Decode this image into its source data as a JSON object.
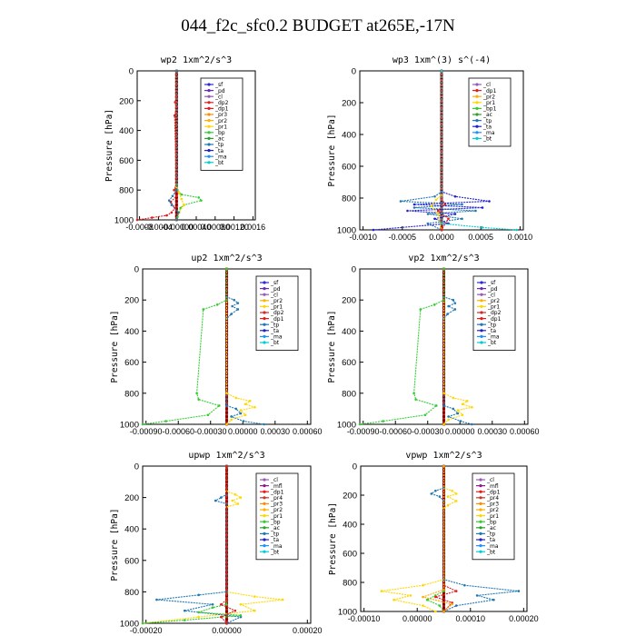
{
  "figure": {
    "title": "044_f2c_sfc0.2  BUDGET at265E,-17N"
  },
  "chart_data": [
    {
      "type": "line",
      "title": "wp2  1xm^2/s^3",
      "ylabel": "Pressure [hPa]",
      "ylim": [
        1000,
        0
      ],
      "xlim": [
        -0.0008,
        0.0016
      ],
      "xticks": [
        "-0.0008",
        "-0.0004",
        "-0.00000",
        "0.00040",
        "0.00080",
        "0.00120",
        "0.0016"
      ],
      "yticks": [
        "0",
        "200",
        "400",
        "600",
        "800",
        "1000"
      ],
      "legend": [
        "_sf",
        "_pd",
        "_cl",
        "_dp2",
        "_dp1",
        "_pr3",
        "_pr2",
        "_pr1",
        "_bp",
        "_ac",
        "_tp",
        "_ta",
        "_ma",
        "_bt"
      ],
      "legend_position": "top-right",
      "series": [
        {
          "name": "_dp1",
          "color": "#e41a1c",
          "x": [
            0,
            0,
            -3e-05,
            0,
            -4e-05,
            0,
            -5e-05,
            0,
            -0.00012,
            -3e-05,
            -0.0001,
            -0.0002,
            -0.0005,
            -0.0008
          ],
          "y": [
            0,
            180,
            210,
            240,
            300,
            760,
            800,
            840,
            880,
            920,
            950,
            970,
            985,
            1000
          ]
        },
        {
          "name": "_bp",
          "color": "#33cc33",
          "x": [
            0,
            0,
            2e-05,
            0.0001,
            0.00045,
            0.0005,
            0.00015,
            8e-05,
            5e-05,
            2e-05,
            0
          ],
          "y": [
            0,
            760,
            800,
            830,
            850,
            870,
            900,
            920,
            950,
            980,
            1000
          ]
        },
        {
          "name": "_pr1",
          "color": "#ffd700",
          "x": [
            0,
            0,
            5e-05,
            0.0001,
            0.00015,
            5e-05,
            0
          ],
          "y": [
            0,
            780,
            820,
            860,
            900,
            950,
            1000
          ]
        },
        {
          "name": "_tp",
          "color": "#1f78b4",
          "x": [
            0,
            0,
            -8e-05,
            -0.00015,
            -0.0001,
            4e-05,
            0
          ],
          "y": [
            0,
            800,
            840,
            870,
            900,
            950,
            1000
          ]
        }
      ]
    },
    {
      "type": "line",
      "title": "wp3  1xm^(3) s^(-4)",
      "ylabel": "Pressure [hPa]",
      "ylim": [
        1000,
        0
      ],
      "xlim": [
        -0.0012,
        0.0012
      ],
      "xticks": [
        "-0.0010",
        "-0.0005",
        "0.0000",
        "0.0005",
        "0.0010"
      ],
      "yticks": [
        "0",
        "200",
        "400",
        "600",
        "800",
        "1000"
      ],
      "legend": [
        "_cl",
        "_dp1",
        "_pr2",
        "_pr1",
        "_bp1",
        "_ac",
        "_tp",
        "_ta",
        "_ma",
        "_bt"
      ],
      "legend_position": "top-right",
      "series": [
        {
          "name": "_tp",
          "color": "#1f78b4",
          "x": [
            0,
            0,
            -0.0001,
            -0.0006,
            0.0003,
            -0.0004,
            0.0005,
            -0.0002,
            0.0003,
            -0.0002,
            0
          ],
          "y": [
            0,
            760,
            790,
            820,
            840,
            860,
            880,
            900,
            930,
            960,
            1000
          ]
        },
        {
          "name": "_ta",
          "color": "#1f1fd0",
          "x": [
            0,
            0,
            0.0002,
            0.0007,
            -0.0004,
            0.0006,
            -0.0005,
            0.0002,
            -0.0001,
            0.0001,
            -0.001
          ],
          "y": [
            0,
            760,
            790,
            820,
            840,
            860,
            880,
            900,
            930,
            960,
            1000
          ]
        },
        {
          "name": "_pr1",
          "color": "#ffd700",
          "x": [
            0,
            0,
            -8e-05,
            -0.00015,
            -5e-05,
            0
          ],
          "y": [
            0,
            780,
            810,
            850,
            900,
            1000
          ]
        },
        {
          "name": "_dp1",
          "color": "#e41a1c",
          "x": [
            0,
            0,
            5e-05,
            -5e-05,
            0.0001,
            0
          ],
          "y": [
            0,
            800,
            840,
            880,
            930,
            1000
          ]
        },
        {
          "name": "_bt",
          "color": "#00ced1",
          "x": [
            0,
            0,
            0.0006,
            0.0011
          ],
          "y": [
            0,
            960,
            985,
            1000
          ]
        }
      ]
    },
    {
      "type": "line",
      "title": "up2  1xm^2/s^3",
      "ylabel": "Pressure [hPa]",
      "ylim": [
        1000,
        0
      ],
      "xlim": [
        -0.0009,
        0.0009
      ],
      "xticks": [
        "-0.00090",
        "-0.00060",
        "-0.00030",
        "0.00000",
        "0.00030",
        "0.00060"
      ],
      "yticks": [
        "0",
        "200",
        "400",
        "600",
        "800",
        "1000"
      ],
      "legend": [
        "_sf",
        "_pd",
        "_cl",
        "_pr2",
        "_pr1",
        "_dp2",
        "_dp1",
        "_tp",
        "_ta",
        "_ma",
        "_bt"
      ],
      "legend_position": "top-right",
      "series": [
        {
          "name": "_ta",
          "color": "#1f78b4",
          "x": [
            0,
            0,
            8e-05,
            0.00012,
            6e-05,
            0.00012,
            5e-05,
            0,
            0,
            0.0001,
            0.00015,
            5e-05,
            0.00018,
            0.0004
          ],
          "y": [
            0,
            180,
            200,
            220,
            240,
            260,
            290,
            320,
            880,
            900,
            930,
            950,
            980,
            1000
          ]
        },
        {
          "name": "_pr1",
          "color": "#ffd700",
          "x": [
            0,
            0,
            0.0001,
            0.00025,
            0.0002,
            0.0003,
            0.00015,
            0.0002,
            5e-05,
            0
          ],
          "y": [
            0,
            800,
            830,
            850,
            870,
            890,
            910,
            940,
            970,
            1000
          ]
        },
        {
          "name": "_dp1",
          "color": "#33cc33",
          "x": [
            0,
            0,
            -0.0001,
            -0.00025,
            -0.00032,
            -0.0003,
            -8e-05,
            -0.0002,
            -0.00065,
            -0.0009
          ],
          "y": [
            0,
            200,
            230,
            260,
            800,
            840,
            880,
            940,
            980,
            1000
          ]
        }
      ]
    },
    {
      "type": "line",
      "title": "vp2  1xm^2/s^3",
      "ylabel": "Pressure [hPa]",
      "ylim": [
        1000,
        0
      ],
      "xlim": [
        -0.0009,
        0.0009
      ],
      "xticks": [
        "-0.00090",
        "-0.00060",
        "-0.00030",
        "0.00000",
        "0.00030",
        "0.00060"
      ],
      "yticks": [
        "0",
        "200",
        "400",
        "600",
        "800",
        "1000"
      ],
      "legend": [
        "_sf",
        "_pd",
        "_cl",
        "_pr2",
        "_pr1",
        "_dp2",
        "_dp1",
        "_tp",
        "_ta",
        "_ma",
        "_bt"
      ],
      "legend_position": "top-right",
      "series": [
        {
          "name": "_ta",
          "color": "#1f78b4",
          "x": [
            0,
            0,
            0.0001,
            0.00012,
            5e-05,
            0.00012,
            4e-05,
            0,
            0,
            0.0001,
            0.00015,
            5e-05,
            0.00018,
            0.0003
          ],
          "y": [
            0,
            180,
            200,
            220,
            240,
            260,
            290,
            320,
            880,
            900,
            930,
            950,
            980,
            1000
          ]
        },
        {
          "name": "_pr1",
          "color": "#ffd700",
          "x": [
            0,
            0,
            0.0001,
            0.00025,
            0.0002,
            0.0003,
            0.00015,
            0.0002,
            5e-05,
            0
          ],
          "y": [
            0,
            800,
            830,
            850,
            870,
            890,
            910,
            940,
            970,
            1000
          ]
        },
        {
          "name": "_dp1",
          "color": "#33cc33",
          "x": [
            0,
            0,
            -0.0001,
            -0.00025,
            -0.00032,
            -0.0003,
            -8e-05,
            -0.0002,
            -0.00065,
            -0.0009
          ],
          "y": [
            0,
            200,
            230,
            260,
            800,
            840,
            880,
            940,
            980,
            1000
          ]
        }
      ]
    },
    {
      "type": "line",
      "title": "upwp  1xm^2/s^3",
      "ylabel": "Pressure [hPa]",
      "ylim": [
        1000,
        0
      ],
      "xlim": [
        -0.0003,
        0.0003
      ],
      "xticks": [
        "-0.00020",
        "0.00000",
        "0.00020"
      ],
      "yticks": [
        "0",
        "200",
        "400",
        "600",
        "800",
        "1000"
      ],
      "legend": [
        "_cl",
        "_mfl",
        "_dp1",
        "_pr4",
        "_pr3",
        "_pr2",
        "_pr1",
        "_bp",
        "_ac",
        "_tp",
        "_ta",
        "_ma",
        "_bt"
      ],
      "legend_position": "top-right",
      "series": [
        {
          "name": "_pr2",
          "color": "#ffd700",
          "x": [
            0,
            0,
            3e-05,
            5e-05,
            2e-05,
            4e-05,
            0,
            0,
            0.0001,
            0.0002,
            5e-05,
            0.0001,
            -0.0001,
            -0.0003
          ],
          "y": [
            0,
            160,
            180,
            200,
            220,
            240,
            260,
            800,
            830,
            850,
            880,
            920,
            960,
            1000
          ]
        },
        {
          "name": "_tp",
          "color": "#1f78b4",
          "x": [
            0,
            0,
            -2e-05,
            -4e-05,
            0,
            0,
            -0.0001,
            -0.00025,
            -5e-05,
            -0.00015,
            5e-05,
            0
          ],
          "y": [
            0,
            180,
            200,
            220,
            240,
            800,
            820,
            850,
            880,
            920,
            960,
            1000
          ]
        },
        {
          "name": "_ac",
          "color": "#33cc33",
          "x": [
            0,
            0,
            -5e-05,
            -0.0001,
            5e-05,
            -0.00015,
            -0.0003
          ],
          "y": [
            0,
            880,
            900,
            930,
            950,
            980,
            1000
          ]
        },
        {
          "name": "_dp1",
          "color": "#e41a1c",
          "x": [
            0,
            0,
            -2e-05,
            3e-05,
            -2e-05,
            0
          ],
          "y": [
            0,
            850,
            880,
            920,
            960,
            1000
          ]
        }
      ]
    },
    {
      "type": "line",
      "title": "vpwp  1xm^2/s^3",
      "ylabel": "Pressure [hPa]",
      "ylim": [
        1000,
        0
      ],
      "xlim": [
        -0.0002,
        0.0002
      ],
      "xticks": [
        "-0.00010",
        "0.00000",
        "0.00010",
        "0.00020"
      ],
      "yticks": [
        "0",
        "200",
        "400",
        "600",
        "800",
        "1000"
      ],
      "legend": [
        "_cl",
        "_mfl",
        "_dp1",
        "_pr4",
        "_pr3",
        "_pr2",
        "_pr1",
        "_bp",
        "_ac",
        "_tp",
        "_ta",
        "_ma",
        "_bt"
      ],
      "legend_position": "top-right",
      "series": [
        {
          "name": "_pr2",
          "color": "#ffd700",
          "x": [
            0,
            0,
            2e-05,
            3e-05,
            1e-05,
            3e-05,
            1e-05,
            0,
            0,
            -5e-05,
            -0.00015,
            -8e-05,
            -0.00012,
            -5e-05,
            -2e-05
          ],
          "y": [
            0,
            150,
            170,
            190,
            210,
            240,
            270,
            290,
            780,
            820,
            860,
            890,
            920,
            960,
            1000
          ]
        },
        {
          "name": "_tp",
          "color": "#1f78b4",
          "x": [
            0,
            0,
            -2e-05,
            -3e-05,
            -1e-05,
            0,
            0,
            5e-05,
            0.00018,
            8e-05,
            0.00012,
            3e-05,
            0
          ],
          "y": [
            0,
            150,
            170,
            190,
            210,
            240,
            780,
            820,
            860,
            890,
            920,
            960,
            1000
          ]
        },
        {
          "name": "_ac",
          "color": "#33cc33",
          "x": [
            0,
            0,
            -2e-05,
            -4e-05,
            -1e-05,
            0
          ],
          "y": [
            0,
            860,
            890,
            920,
            960,
            1000
          ]
        },
        {
          "name": "_dp1",
          "color": "#e41a1c",
          "x": [
            0,
            0,
            3e-05,
            -2e-05,
            2e-05,
            0
          ],
          "y": [
            0,
            820,
            860,
            900,
            940,
            1000
          ]
        },
        {
          "name": "_pr1",
          "color": "#ffa500",
          "x": [
            0,
            0,
            -5e-05,
            2e-05,
            0
          ],
          "y": [
            0,
            850,
            900,
            950,
            1000
          ]
        }
      ]
    }
  ]
}
